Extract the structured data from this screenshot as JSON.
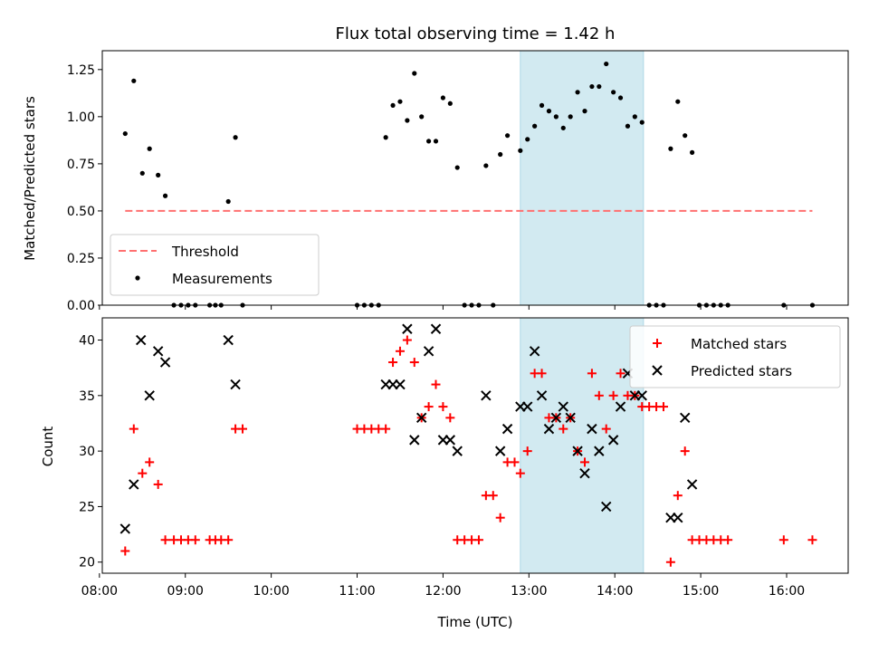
{
  "chart_data": [
    {
      "type": "scatter",
      "title": "Flux total observing time = 1.42 h",
      "xlabel": "",
      "ylabel": "Matched/Predicted stars",
      "xlim": [
        "08:02",
        "16:43"
      ],
      "ylim": [
        0,
        1.35
      ],
      "x_ticks": [
        "08:00",
        "09:00",
        "10:00",
        "11:00",
        "12:00",
        "13:00",
        "14:00",
        "15:00",
        "16:00"
      ],
      "y_ticks": [
        "0.00",
        "0.25",
        "0.50",
        "0.75",
        "1.00",
        "1.25"
      ],
      "shaded_span": {
        "start": "12:54",
        "end": "14:20",
        "color": "#add8e6"
      },
      "legend": {
        "placement": "lower-left",
        "entries": [
          "Threshold",
          "Measurements"
        ]
      },
      "threshold": {
        "name": "Threshold",
        "value": 0.5,
        "x_range": [
          "08:18",
          "16:18"
        ],
        "color": "#ff7070",
        "style": "dashed"
      },
      "measurements": {
        "name": "Measurements",
        "color": "#000000",
        "points": [
          [
            "08:18",
            0.91
          ],
          [
            "08:24",
            1.19
          ],
          [
            "08:30",
            0.7
          ],
          [
            "08:35",
            0.83
          ],
          [
            "08:41",
            0.69
          ],
          [
            "08:46",
            0.58
          ],
          [
            "08:52",
            0.0
          ],
          [
            "08:57",
            0.0
          ],
          [
            "09:02",
            0.0
          ],
          [
            "09:07",
            0.0
          ],
          [
            "09:17",
            0.0
          ],
          [
            "09:21",
            0.0
          ],
          [
            "09:25",
            0.0
          ],
          [
            "09:30",
            0.55
          ],
          [
            "09:35",
            0.89
          ],
          [
            "09:40",
            0.0
          ],
          [
            "11:00",
            0.0
          ],
          [
            "11:05",
            0.0
          ],
          [
            "11:10",
            0.0
          ],
          [
            "11:15",
            0.0
          ],
          [
            "11:20",
            0.89
          ],
          [
            "11:25",
            1.06
          ],
          [
            "11:30",
            1.08
          ],
          [
            "11:35",
            0.98
          ],
          [
            "11:40",
            1.23
          ],
          [
            "11:45",
            1.0
          ],
          [
            "11:50",
            0.87
          ],
          [
            "11:55",
            0.87
          ],
          [
            "12:00",
            1.1
          ],
          [
            "12:05",
            1.07
          ],
          [
            "12:10",
            0.73
          ],
          [
            "12:15",
            0.0
          ],
          [
            "12:20",
            0.0
          ],
          [
            "12:25",
            0.0
          ],
          [
            "12:30",
            0.74
          ],
          [
            "12:35",
            0.0
          ],
          [
            "12:40",
            0.8
          ],
          [
            "12:45",
            0.9
          ],
          [
            "12:54",
            0.82
          ],
          [
            "12:59",
            0.88
          ],
          [
            "13:04",
            0.95
          ],
          [
            "13:09",
            1.06
          ],
          [
            "13:14",
            1.03
          ],
          [
            "13:19",
            1.0
          ],
          [
            "13:24",
            0.94
          ],
          [
            "13:29",
            1.0
          ],
          [
            "13:34",
            1.13
          ],
          [
            "13:39",
            1.03
          ],
          [
            "13:44",
            1.16
          ],
          [
            "13:49",
            1.16
          ],
          [
            "13:54",
            1.28
          ],
          [
            "13:59",
            1.13
          ],
          [
            "14:04",
            1.1
          ],
          [
            "14:09",
            0.95
          ],
          [
            "14:14",
            1.0
          ],
          [
            "14:19",
            0.97
          ],
          [
            "14:24",
            0.0
          ],
          [
            "14:29",
            0.0
          ],
          [
            "14:34",
            0.0
          ],
          [
            "14:39",
            0.83
          ],
          [
            "14:44",
            1.08
          ],
          [
            "14:49",
            0.9
          ],
          [
            "14:54",
            0.81
          ],
          [
            "14:59",
            0.0
          ],
          [
            "15:04",
            0.0
          ],
          [
            "15:09",
            0.0
          ],
          [
            "15:14",
            0.0
          ],
          [
            "15:19",
            0.0
          ],
          [
            "15:58",
            0.0
          ],
          [
            "16:18",
            0.0
          ]
        ]
      }
    },
    {
      "type": "scatter",
      "title": "",
      "xlabel": "Time (UTC)",
      "ylabel": "Count",
      "xlim": [
        "08:02",
        "16:43"
      ],
      "ylim": [
        19,
        42
      ],
      "x_ticks": [
        "08:00",
        "09:00",
        "10:00",
        "11:00",
        "12:00",
        "13:00",
        "14:00",
        "15:00",
        "16:00"
      ],
      "y_ticks": [
        "20",
        "25",
        "30",
        "35",
        "40"
      ],
      "shaded_span": {
        "start": "12:54",
        "end": "14:20",
        "color": "#add8e6"
      },
      "legend": {
        "placement": "upper-right",
        "entries": [
          "Matched stars",
          "Predicted stars"
        ]
      },
      "series": [
        {
          "name": "Matched stars",
          "marker": "+",
          "color": "#ff0000",
          "points": [
            [
              "08:18",
              21
            ],
            [
              "08:24",
              32
            ],
            [
              "08:30",
              28
            ],
            [
              "08:35",
              29
            ],
            [
              "08:41",
              27
            ],
            [
              "08:46",
              22
            ],
            [
              "08:52",
              22
            ],
            [
              "08:57",
              22
            ],
            [
              "09:02",
              22
            ],
            [
              "09:07",
              22
            ],
            [
              "09:17",
              22
            ],
            [
              "09:21",
              22
            ],
            [
              "09:25",
              22
            ],
            [
              "09:30",
              22
            ],
            [
              "09:35",
              32
            ],
            [
              "09:40",
              32
            ],
            [
              "11:00",
              32
            ],
            [
              "11:05",
              32
            ],
            [
              "11:10",
              32
            ],
            [
              "11:15",
              32
            ],
            [
              "11:20",
              32
            ],
            [
              "11:25",
              38
            ],
            [
              "11:30",
              39
            ],
            [
              "11:35",
              40
            ],
            [
              "11:40",
              38
            ],
            [
              "11:45",
              33
            ],
            [
              "11:50",
              34
            ],
            [
              "11:55",
              36
            ],
            [
              "12:00",
              34
            ],
            [
              "12:05",
              33
            ],
            [
              "12:10",
              22
            ],
            [
              "12:15",
              22
            ],
            [
              "12:20",
              22
            ],
            [
              "12:25",
              22
            ],
            [
              "12:30",
              26
            ],
            [
              "12:35",
              26
            ],
            [
              "12:40",
              24
            ],
            [
              "12:45",
              29
            ],
            [
              "12:50",
              29
            ],
            [
              "12:54",
              28
            ],
            [
              "12:59",
              30
            ],
            [
              "13:04",
              37
            ],
            [
              "13:09",
              37
            ],
            [
              "13:14",
              33
            ],
            [
              "13:19",
              33
            ],
            [
              "13:24",
              32
            ],
            [
              "13:29",
              33
            ],
            [
              "13:34",
              30
            ],
            [
              "13:39",
              29
            ],
            [
              "13:44",
              37
            ],
            [
              "13:49",
              35
            ],
            [
              "13:54",
              32
            ],
            [
              "13:59",
              35
            ],
            [
              "14:04",
              37
            ],
            [
              "14:09",
              35
            ],
            [
              "14:14",
              35
            ],
            [
              "14:19",
              34
            ],
            [
              "14:24",
              34
            ],
            [
              "14:29",
              34
            ],
            [
              "14:34",
              34
            ],
            [
              "14:39",
              20
            ],
            [
              "14:44",
              26
            ],
            [
              "14:49",
              30
            ],
            [
              "14:54",
              22
            ],
            [
              "14:59",
              22
            ],
            [
              "15:04",
              22
            ],
            [
              "15:09",
              22
            ],
            [
              "15:14",
              22
            ],
            [
              "15:19",
              22
            ],
            [
              "15:58",
              22
            ],
            [
              "16:18",
              22
            ]
          ]
        },
        {
          "name": "Predicted stars",
          "marker": "x",
          "color": "#000000",
          "points": [
            [
              "08:18",
              23
            ],
            [
              "08:24",
              27
            ],
            [
              "08:29",
              40
            ],
            [
              "08:35",
              35
            ],
            [
              "08:41",
              39
            ],
            [
              "08:46",
              38
            ],
            [
              "09:30",
              40
            ],
            [
              "09:35",
              36
            ],
            [
              "11:20",
              36
            ],
            [
              "11:25",
              36
            ],
            [
              "11:30",
              36
            ],
            [
              "11:35",
              41
            ],
            [
              "11:40",
              31
            ],
            [
              "11:45",
              33
            ],
            [
              "11:50",
              39
            ],
            [
              "11:55",
              41
            ],
            [
              "12:00",
              31
            ],
            [
              "12:05",
              31
            ],
            [
              "12:10",
              30
            ],
            [
              "12:30",
              35
            ],
            [
              "12:40",
              30
            ],
            [
              "12:45",
              32
            ],
            [
              "12:54",
              34
            ],
            [
              "12:59",
              34
            ],
            [
              "13:04",
              39
            ],
            [
              "13:09",
              35
            ],
            [
              "13:14",
              32
            ],
            [
              "13:19",
              33
            ],
            [
              "13:24",
              34
            ],
            [
              "13:29",
              33
            ],
            [
              "13:34",
              30
            ],
            [
              "13:39",
              28
            ],
            [
              "13:44",
              32
            ],
            [
              "13:49",
              30
            ],
            [
              "13:54",
              25
            ],
            [
              "13:59",
              31
            ],
            [
              "14:04",
              34
            ],
            [
              "14:09",
              37
            ],
            [
              "14:14",
              35
            ],
            [
              "14:19",
              35
            ],
            [
              "14:39",
              24
            ],
            [
              "14:44",
              24
            ],
            [
              "14:49",
              33
            ],
            [
              "14:54",
              27
            ]
          ]
        }
      ]
    }
  ]
}
